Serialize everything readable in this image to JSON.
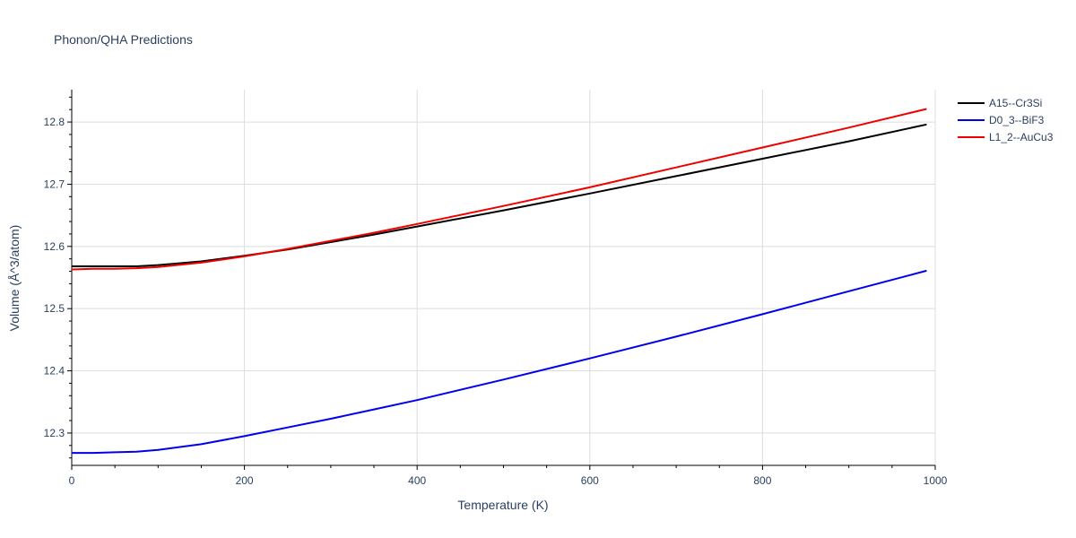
{
  "chart_data": {
    "type": "line",
    "title": "Phonon/QHA Predictions",
    "xlabel": "Temperature (K)",
    "ylabel": "Volume (Å^3/atom)",
    "xlim": [
      0,
      1000
    ],
    "ylim": [
      12.248,
      12.852
    ],
    "x_ticks": [
      0,
      200,
      400,
      600,
      800,
      1000
    ],
    "y_ticks": [
      12.3,
      12.4,
      12.5,
      12.6,
      12.7,
      12.8
    ],
    "x_tick_labels": [
      "0",
      "200",
      "400",
      "600",
      "800",
      "1000"
    ],
    "y_tick_labels": [
      "12.3",
      "12.4",
      "12.5",
      "12.6",
      "12.7",
      "12.8"
    ],
    "grid": true,
    "legend_position": "top-right",
    "series": [
      {
        "name": "A15--Cr3Si",
        "color": "#000000",
        "x": [
          0,
          25,
          50,
          75,
          100,
          150,
          200,
          250,
          300,
          350,
          400,
          500,
          600,
          700,
          800,
          900,
          990
        ],
        "y": [
          12.568,
          12.568,
          12.568,
          12.568,
          12.57,
          12.576,
          12.585,
          12.595,
          12.607,
          12.619,
          12.632,
          12.658,
          12.685,
          12.713,
          12.741,
          12.769,
          12.796
        ]
      },
      {
        "name": "D0_3--BiF3",
        "color": "#0000ee",
        "x": [
          0,
          25,
          50,
          75,
          100,
          150,
          200,
          250,
          300,
          350,
          400,
          500,
          600,
          700,
          800,
          900,
          990
        ],
        "y": [
          12.268,
          12.268,
          12.269,
          12.27,
          12.273,
          12.282,
          12.295,
          12.309,
          12.323,
          12.338,
          12.353,
          12.386,
          12.42,
          12.455,
          12.491,
          12.528,
          12.561
        ]
      },
      {
        "name": "L1_2--AuCu3",
        "color": "#ee0000",
        "x": [
          0,
          25,
          50,
          75,
          100,
          150,
          200,
          250,
          300,
          350,
          400,
          500,
          600,
          700,
          800,
          900,
          990
        ],
        "y": [
          12.563,
          12.564,
          12.564,
          12.565,
          12.567,
          12.574,
          12.584,
          12.596,
          12.609,
          12.622,
          12.636,
          12.665,
          12.695,
          12.727,
          12.759,
          12.791,
          12.821
        ]
      }
    ]
  }
}
